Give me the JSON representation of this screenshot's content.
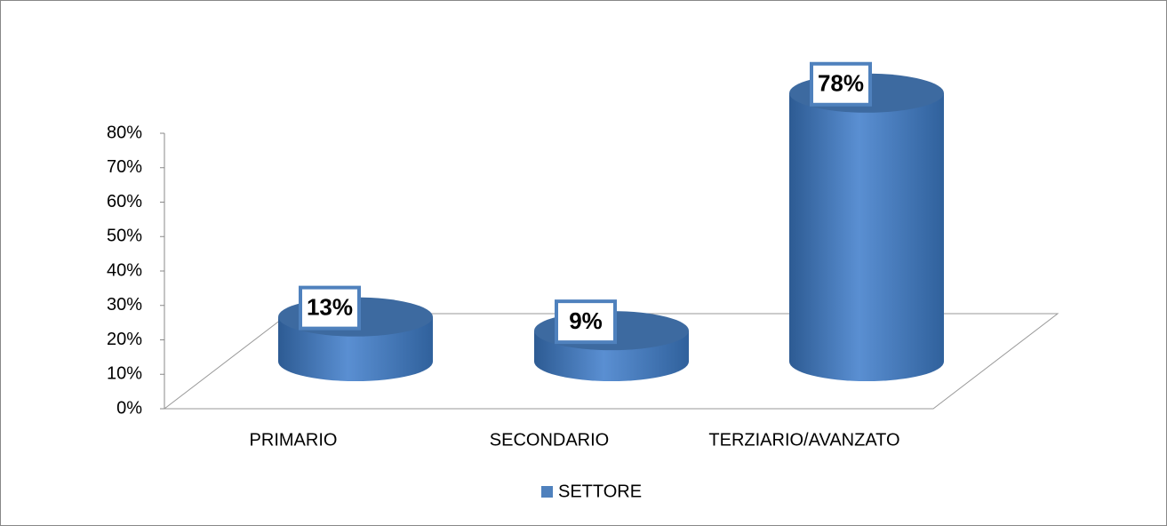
{
  "chart_data": {
    "type": "bar3d",
    "categories": [
      "PRIMARIO",
      "SECONDARIO",
      "TERZIARIO/AVANZATO"
    ],
    "series": [
      {
        "name": "SETTORE",
        "color": "#4f81bd",
        "values": [
          13,
          9,
          78
        ],
        "value_labels": [
          "13%",
          "9%",
          "78%"
        ]
      }
    ],
    "ylim": [
      0,
      80
    ],
    "yticks": [
      {
        "value": 0,
        "label": "0%"
      },
      {
        "value": 10,
        "label": "10%"
      },
      {
        "value": 20,
        "label": "20%"
      },
      {
        "value": 30,
        "label": "30%"
      },
      {
        "value": 40,
        "label": "40%"
      },
      {
        "value": 50,
        "label": "50%"
      },
      {
        "value": 60,
        "label": "60%"
      },
      {
        "value": 70,
        "label": "70%"
      },
      {
        "value": 80,
        "label": "80%"
      }
    ],
    "legend": "bottom"
  }
}
